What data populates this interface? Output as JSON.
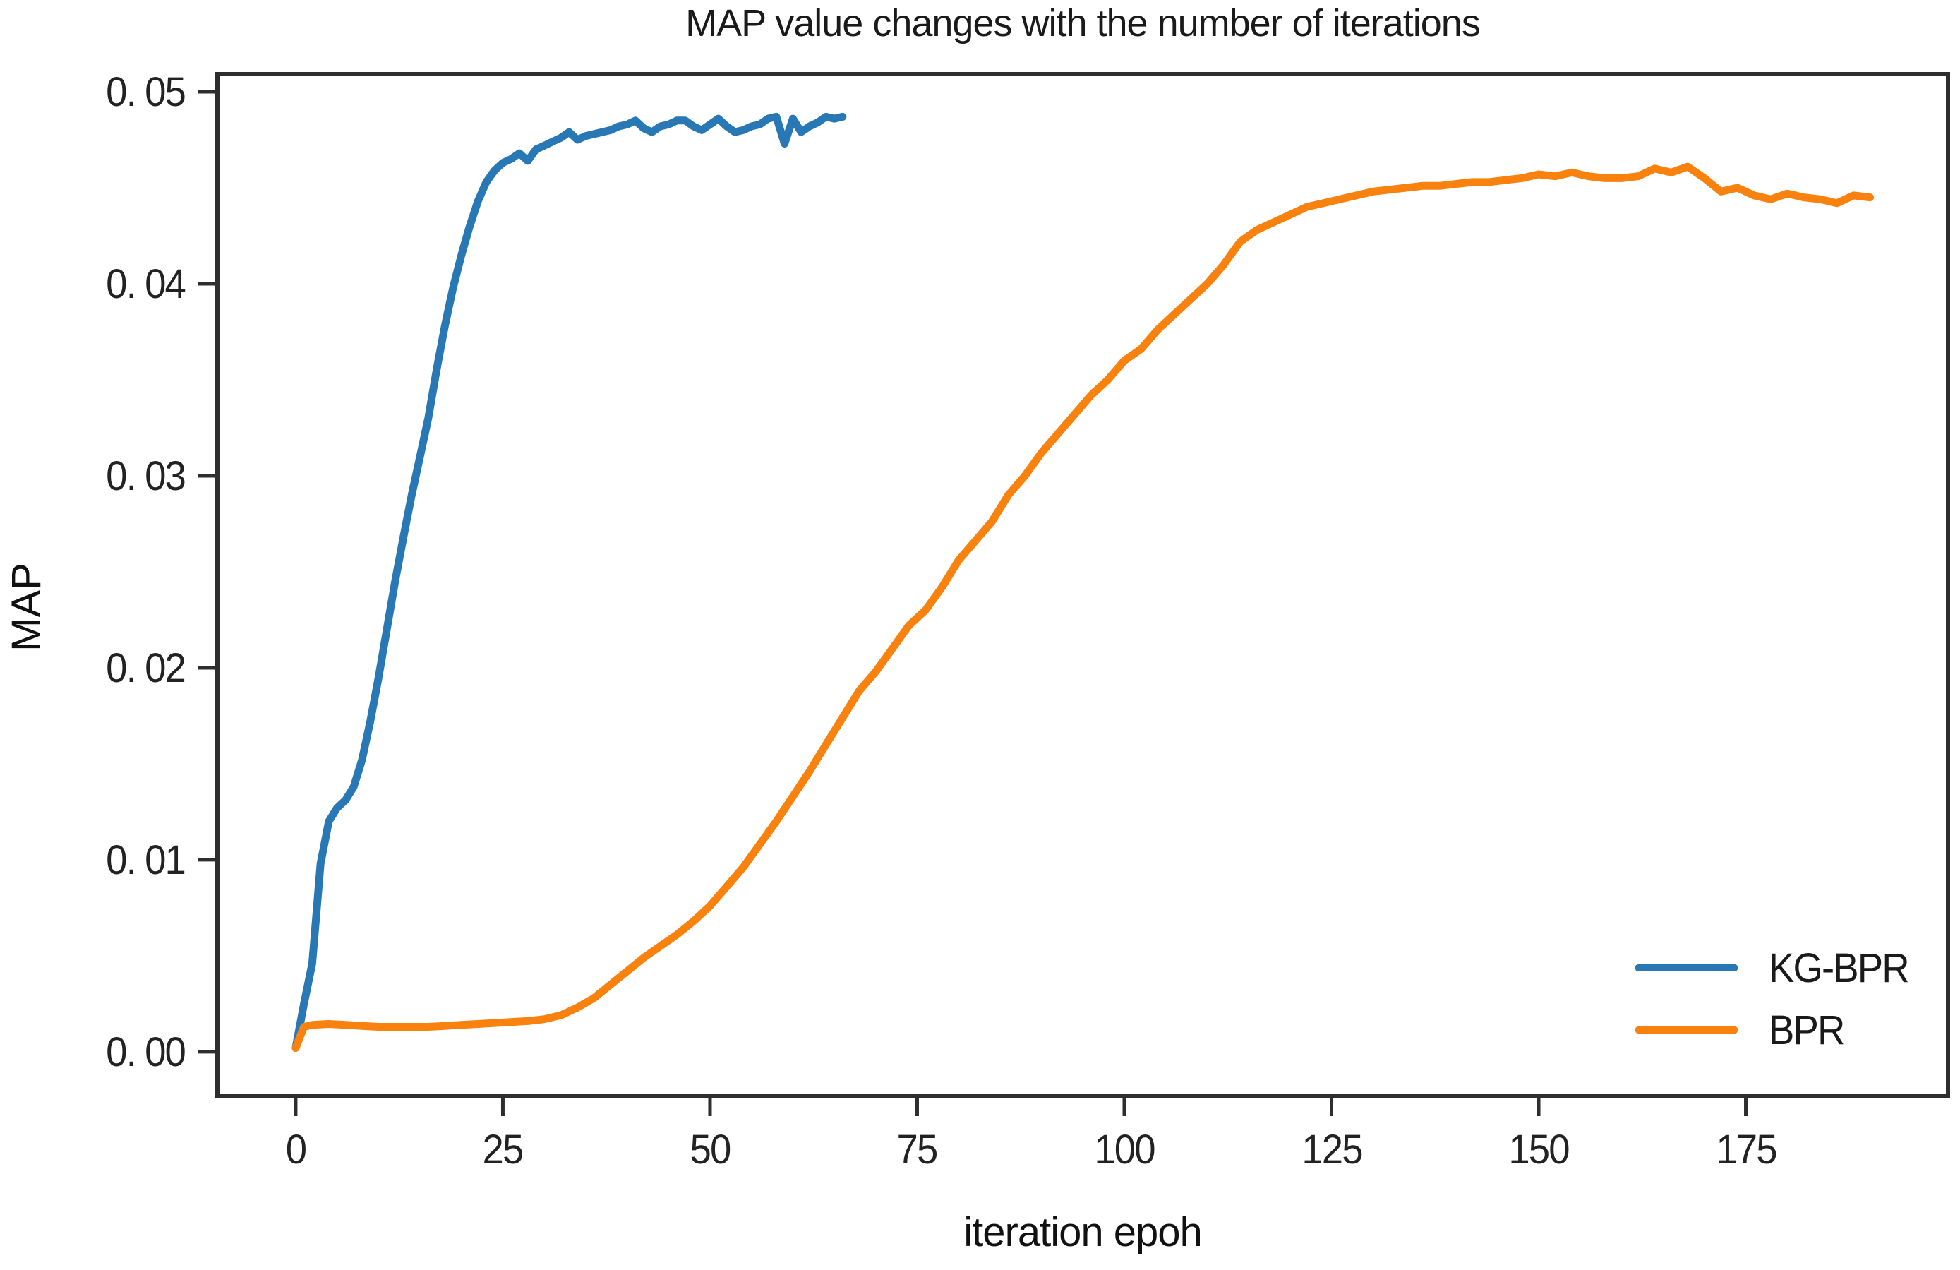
{
  "chart_data": {
    "type": "line",
    "title": "MAP value changes with the number of iterations",
    "xlabel": "iteration epoh",
    "ylabel": "MAP",
    "xlim": [
      -9.45,
      199.4
    ],
    "ylim": [
      -0.00232,
      0.05092
    ],
    "grid": false,
    "legend_position": "lower right",
    "axis_color": "#2e2e2e",
    "text_color": "#1f1f1f",
    "background_color": "#ffffff",
    "x_ticks": [
      {
        "label": "0",
        "value": 0
      },
      {
        "label": "25",
        "value": 25
      },
      {
        "label": "50",
        "value": 50
      },
      {
        "label": "75",
        "value": 75
      },
      {
        "label": "100",
        "value": 100
      },
      {
        "label": "125",
        "value": 125
      },
      {
        "label": "150",
        "value": 150
      },
      {
        "label": "175",
        "value": 175
      }
    ],
    "y_ticks": [
      {
        "label": "0. 00",
        "value": 0.0
      },
      {
        "label": "0. 01",
        "value": 0.01
      },
      {
        "label": "0. 02",
        "value": 0.02
      },
      {
        "label": "0. 03",
        "value": 0.03
      },
      {
        "label": "0. 04",
        "value": 0.04
      },
      {
        "label": "0. 05",
        "value": 0.05
      }
    ],
    "series": [
      {
        "name": "KG-BPR",
        "color": "#2878b5",
        "x": [
          0,
          1,
          2,
          3,
          4,
          5,
          6,
          7,
          8,
          9,
          10,
          11,
          12,
          13,
          14,
          15,
          16,
          17,
          18,
          19,
          20,
          21,
          22,
          23,
          24,
          25,
          26,
          27,
          28,
          29,
          30,
          31,
          32,
          33,
          34,
          35,
          36,
          37,
          38,
          39,
          40,
          41,
          42,
          43,
          44,
          45,
          46,
          47,
          48,
          49,
          50,
          51,
          52,
          53,
          54,
          55,
          56,
          57,
          58,
          59,
          60,
          61,
          62,
          63,
          64,
          65,
          66
        ],
        "y": [
          0.0002,
          0.0025,
          0.0046,
          0.0098,
          0.012,
          0.0127,
          0.0131,
          0.0138,
          0.0152,
          0.0172,
          0.0195,
          0.022,
          0.0245,
          0.0268,
          0.029,
          0.031,
          0.033,
          0.0355,
          0.0378,
          0.0398,
          0.0415,
          0.043,
          0.0443,
          0.0453,
          0.0459,
          0.0463,
          0.0465,
          0.0468,
          0.0464,
          0.047,
          0.0472,
          0.0474,
          0.0476,
          0.0479,
          0.0475,
          0.0477,
          0.0478,
          0.0479,
          0.048,
          0.0482,
          0.0483,
          0.0485,
          0.0481,
          0.0479,
          0.0482,
          0.0483,
          0.0485,
          0.0485,
          0.0482,
          0.048,
          0.0483,
          0.0486,
          0.0482,
          0.0479,
          0.048,
          0.0482,
          0.0483,
          0.0486,
          0.0487,
          0.0473,
          0.0486,
          0.0479,
          0.0482,
          0.0484,
          0.0487,
          0.0486,
          0.0487
        ]
      },
      {
        "name": "BPR",
        "color": "#f9820e",
        "x": [
          0,
          1,
          2,
          4,
          6,
          8,
          10,
          12,
          14,
          16,
          18,
          20,
          22,
          24,
          26,
          28,
          30,
          32,
          34,
          36,
          38,
          40,
          42,
          44,
          46,
          48,
          50,
          52,
          54,
          56,
          58,
          60,
          62,
          64,
          66,
          68,
          70,
          72,
          74,
          76,
          78,
          80,
          82,
          84,
          86,
          88,
          90,
          92,
          94,
          96,
          98,
          100,
          102,
          104,
          106,
          108,
          110,
          112,
          114,
          116,
          118,
          120,
          122,
          124,
          126,
          128,
          130,
          132,
          134,
          136,
          138,
          140,
          142,
          144,
          146,
          148,
          150,
          152,
          154,
          156,
          158,
          160,
          162,
          164,
          166,
          168,
          170,
          172,
          174,
          176,
          178,
          180,
          182,
          184,
          186,
          188,
          190
        ],
        "y": [
          0.0002,
          0.0013,
          0.0014,
          0.00145,
          0.0014,
          0.00135,
          0.0013,
          0.0013,
          0.0013,
          0.0013,
          0.00135,
          0.0014,
          0.00145,
          0.0015,
          0.00155,
          0.0016,
          0.0017,
          0.0019,
          0.0023,
          0.0028,
          0.0035,
          0.0042,
          0.0049,
          0.0055,
          0.0061,
          0.0068,
          0.0076,
          0.0086,
          0.0096,
          0.0108,
          0.012,
          0.0133,
          0.0146,
          0.016,
          0.0174,
          0.0188,
          0.0198,
          0.021,
          0.0222,
          0.023,
          0.0242,
          0.0256,
          0.0266,
          0.0276,
          0.029,
          0.03,
          0.0312,
          0.0322,
          0.0332,
          0.0342,
          0.035,
          0.036,
          0.0366,
          0.0376,
          0.0384,
          0.0392,
          0.04,
          0.041,
          0.0422,
          0.0428,
          0.0432,
          0.0436,
          0.044,
          0.0442,
          0.0444,
          0.0446,
          0.0448,
          0.0449,
          0.045,
          0.0451,
          0.0451,
          0.0452,
          0.0453,
          0.0453,
          0.0454,
          0.0455,
          0.0457,
          0.0456,
          0.0458,
          0.0456,
          0.0455,
          0.0455,
          0.0456,
          0.046,
          0.0458,
          0.0461,
          0.0455,
          0.0448,
          0.045,
          0.0446,
          0.0444,
          0.0447,
          0.0445,
          0.0444,
          0.0442,
          0.0446,
          0.0445
        ]
      }
    ]
  }
}
